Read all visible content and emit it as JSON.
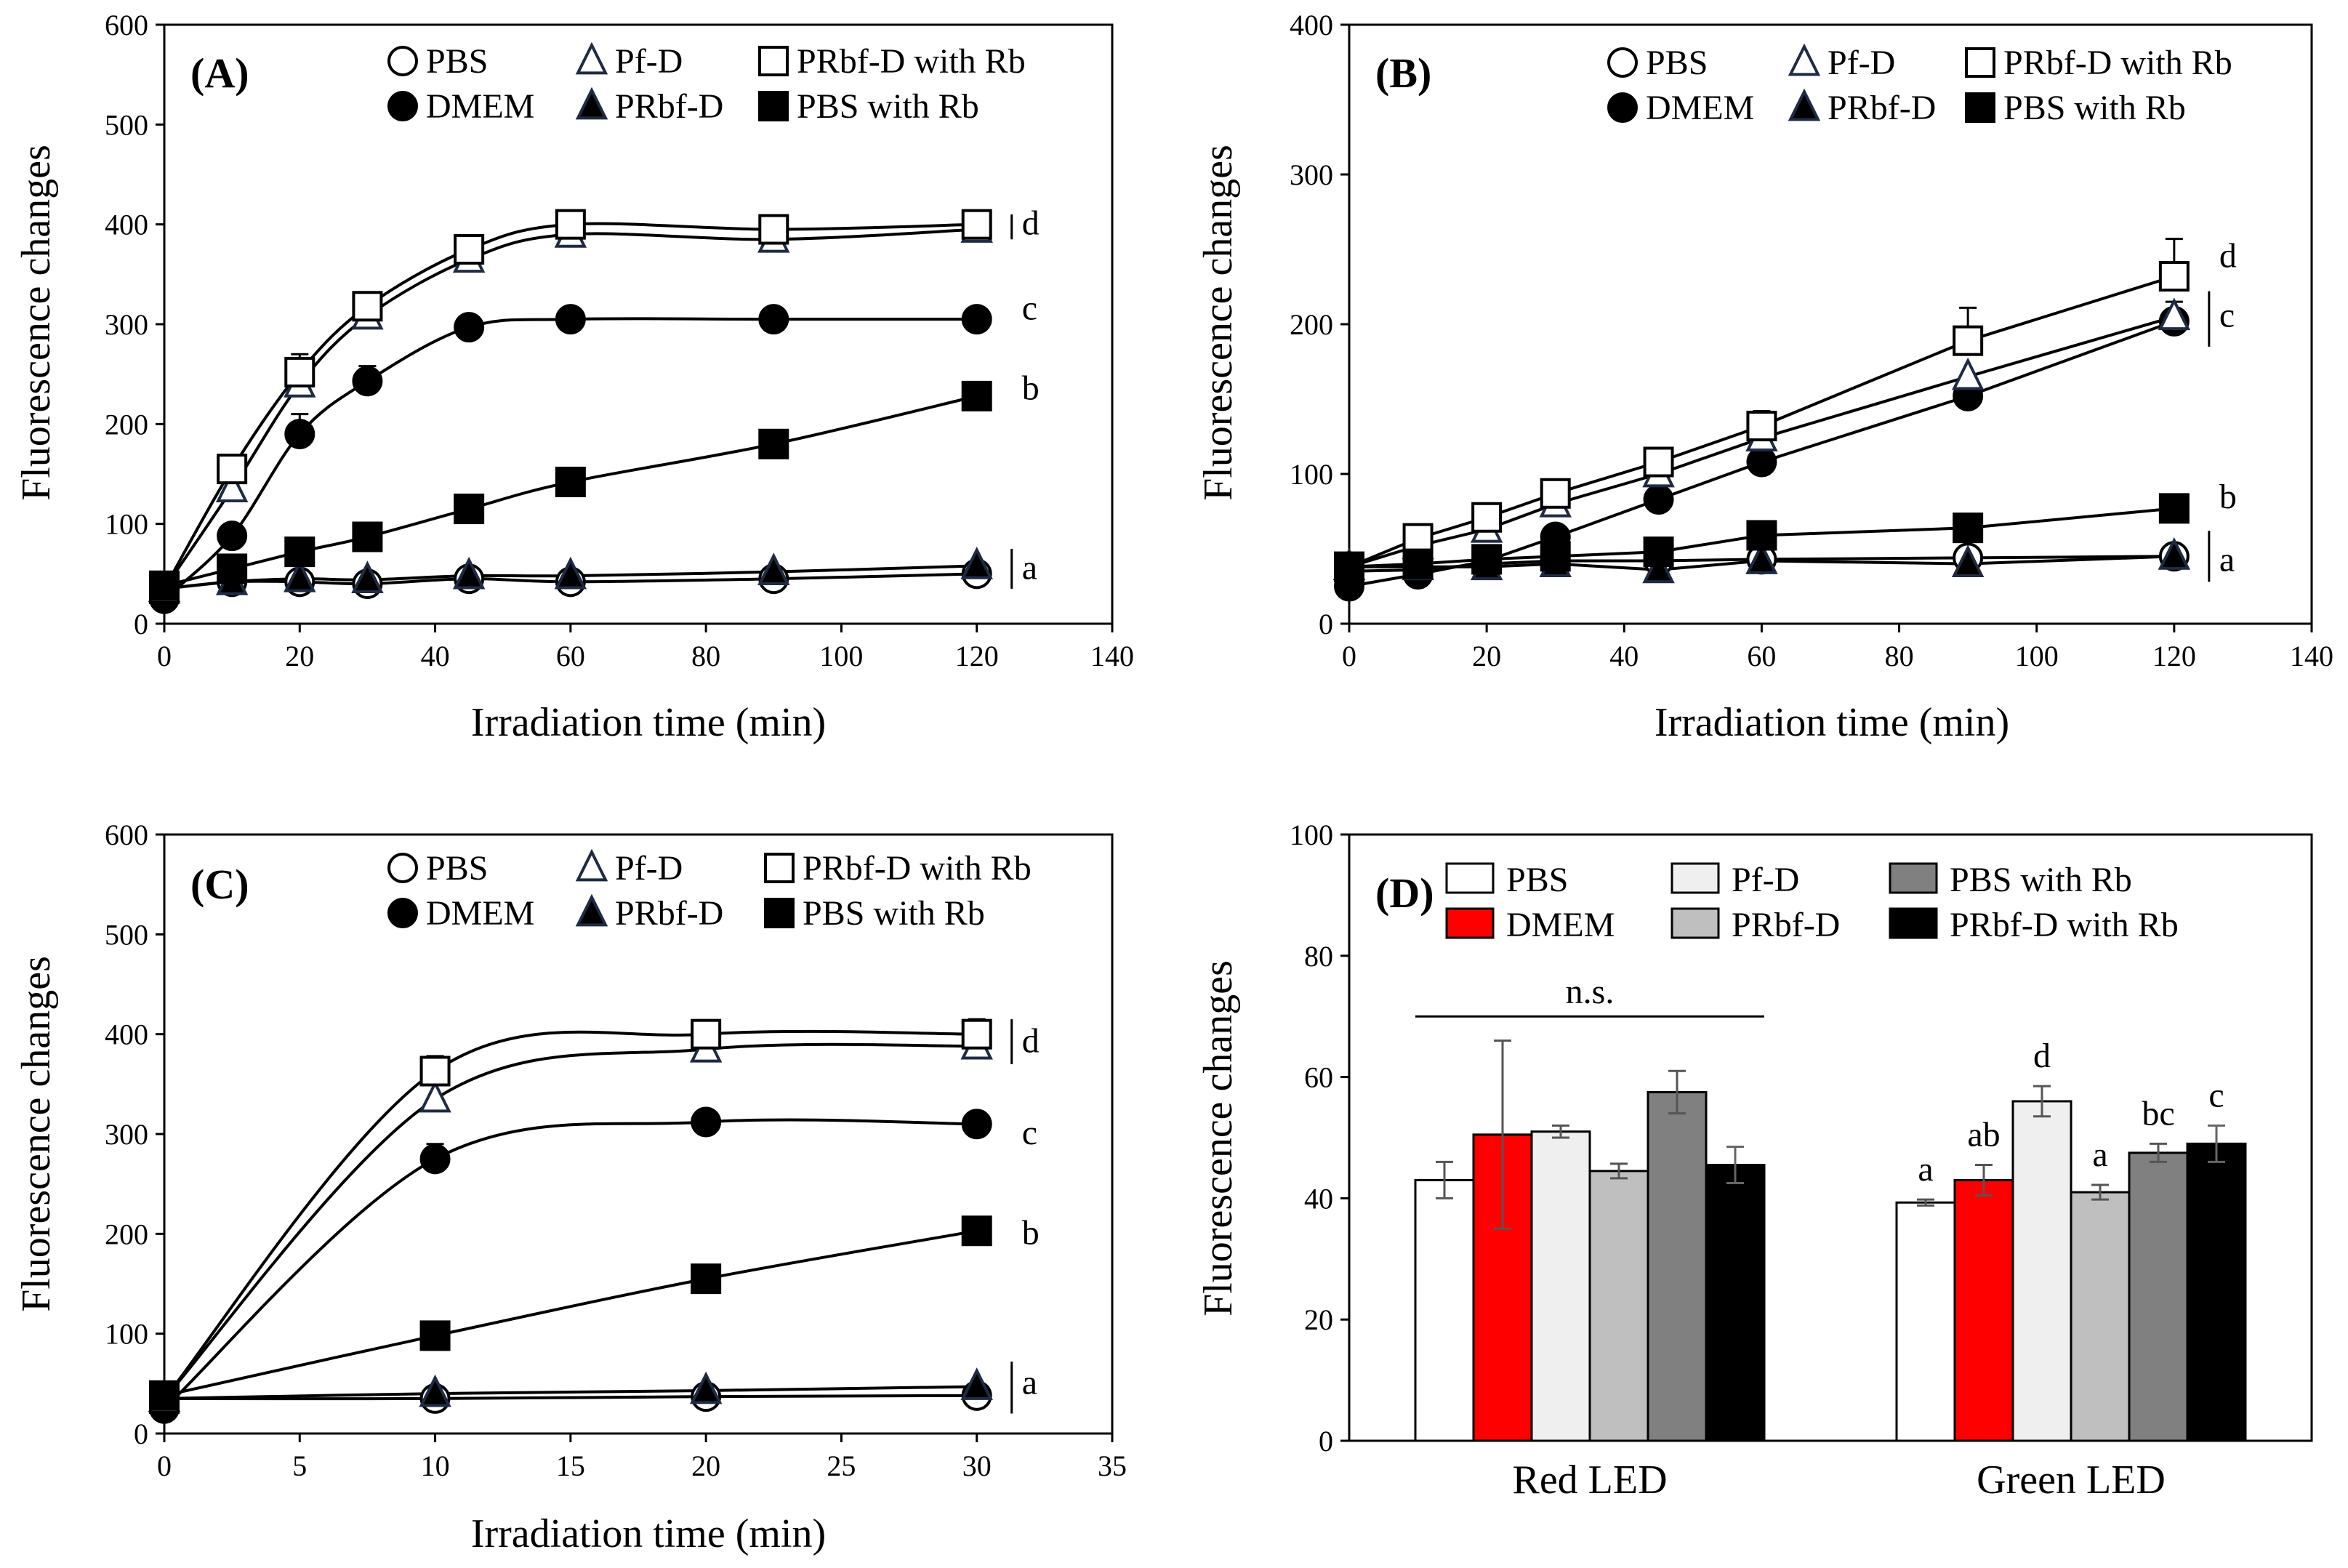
{
  "chart_data": [
    {
      "id": "A",
      "type": "line",
      "panel_label": "(A)",
      "xlabel": "Irradiation time (min)",
      "ylabel": "Fluorescence changes",
      "xlim": [
        0,
        140
      ],
      "ylim": [
        0,
        600
      ],
      "xticks": [
        0,
        20,
        40,
        60,
        80,
        100,
        120,
        140
      ],
      "yticks": [
        0,
        100,
        200,
        300,
        400,
        500,
        600
      ],
      "x": [
        0,
        10,
        20,
        30,
        45,
        60,
        90,
        120
      ],
      "smooth": true,
      "series": [
        {
          "name": "PBS",
          "marker": "circle-open",
          "values": [
            35,
            42,
            42,
            40,
            45,
            42,
            45,
            50
          ],
          "err": [
            0,
            0,
            0,
            0,
            0,
            0,
            0,
            0
          ]
        },
        {
          "name": "DMEM",
          "marker": "circle-filled",
          "values": [
            25,
            88,
            190,
            243,
            297,
            305,
            305,
            305
          ],
          "err": [
            0,
            0,
            20,
            15,
            0,
            0,
            0,
            0
          ]
        },
        {
          "name": "Pf-D",
          "marker": "triangle-open",
          "values": [
            35,
            135,
            240,
            308,
            365,
            390,
            385,
            395
          ],
          "err": [
            0,
            0,
            10,
            12,
            15,
            0,
            0,
            0
          ]
        },
        {
          "name": "PRbf-D",
          "marker": "triangle-filled",
          "values": [
            35,
            42,
            45,
            44,
            48,
            48,
            52,
            58
          ],
          "err": [
            0,
            0,
            0,
            0,
            0,
            0,
            0,
            0
          ]
        },
        {
          "name": "PRbf-D with Rb",
          "marker": "square-open",
          "values": [
            35,
            155,
            252,
            318,
            375,
            400,
            395,
            400
          ],
          "err": [
            0,
            0,
            18,
            0,
            0,
            0,
            0,
            0
          ]
        },
        {
          "name": "PBS with Rb",
          "marker": "square-filled",
          "values": [
            38,
            55,
            72,
            87,
            115,
            142,
            180,
            228
          ],
          "err": [
            0,
            0,
            0,
            0,
            0,
            0,
            0,
            0
          ]
        }
      ],
      "legend_order": [
        "PBS",
        "Pf-D",
        "PRbf-D with Rb",
        "DMEM",
        "PRbf-D",
        "PBS with Rb"
      ],
      "significance": [
        {
          "label": "d",
          "y": 400,
          "bracket": [
            385,
            410
          ]
        },
        {
          "label": "c",
          "y": 315,
          "bracket": null
        },
        {
          "label": "b",
          "y": 235,
          "bracket": null
        },
        {
          "label": "a",
          "y": 55,
          "bracket": [
            35,
            75
          ]
        }
      ]
    },
    {
      "id": "B",
      "type": "line",
      "panel_label": "(B)",
      "xlabel": "Irradiation time (min)",
      "ylabel": "Fluorescence changes",
      "xlim": [
        0,
        140
      ],
      "ylim": [
        0,
        400
      ],
      "xticks": [
        0,
        20,
        40,
        60,
        80,
        100,
        120,
        140
      ],
      "yticks": [
        0,
        100,
        200,
        300,
        400
      ],
      "x": [
        0,
        10,
        20,
        30,
        45,
        60,
        90,
        120
      ],
      "smooth": false,
      "series": [
        {
          "name": "PBS",
          "marker": "circle-open",
          "values": [
            35,
            36,
            40,
            42,
            42,
            43,
            44,
            45
          ],
          "err": [
            0,
            0,
            0,
            0,
            0,
            0,
            0,
            0
          ]
        },
        {
          "name": "DMEM",
          "marker": "circle-filled",
          "values": [
            25,
            33,
            42,
            58,
            83,
            108,
            152,
            202
          ],
          "err": [
            0,
            0,
            0,
            0,
            0,
            0,
            0,
            0
          ]
        },
        {
          "name": "Pf-D",
          "marker": "triangle-open",
          "values": [
            38,
            52,
            63,
            80,
            100,
            124,
            165,
            205
          ],
          "err": [
            0,
            0,
            0,
            0,
            0,
            0,
            0,
            10
          ]
        },
        {
          "name": "PRbf-D",
          "marker": "triangle-filled",
          "values": [
            38,
            38,
            38,
            40,
            36,
            42,
            40,
            45
          ],
          "err": [
            0,
            0,
            0,
            0,
            0,
            0,
            0,
            0
          ]
        },
        {
          "name": "PRbf-D with Rb",
          "marker": "square-open",
          "values": [
            38,
            57,
            71,
            87,
            108,
            132,
            189,
            232
          ],
          "err": [
            0,
            0,
            0,
            0,
            0,
            10,
            22,
            25
          ]
        },
        {
          "name": "PBS with Rb",
          "marker": "square-filled",
          "values": [
            38,
            40,
            43,
            45,
            48,
            59,
            64,
            77
          ],
          "err": [
            0,
            0,
            0,
            0,
            0,
            0,
            0,
            0
          ]
        }
      ],
      "legend_order": [
        "PBS",
        "Pf-D",
        "PRbf-D with Rb",
        "DMEM",
        "PRbf-D",
        "PBS with Rb"
      ],
      "significance": [
        {
          "label": "d",
          "y": 245,
          "bracket": null
        },
        {
          "label": "c",
          "y": 205,
          "bracket": [
            185,
            222
          ]
        },
        {
          "label": "b",
          "y": 84,
          "bracket": null
        },
        {
          "label": "a",
          "y": 42,
          "bracket": [
            28,
            62
          ]
        }
      ]
    },
    {
      "id": "C",
      "type": "line",
      "panel_label": "(C)",
      "xlabel": "Irradiation time (min)",
      "ylabel": "Fluorescence changes",
      "xlim": [
        0,
        35
      ],
      "ylim": [
        0,
        600
      ],
      "xticks": [
        0,
        5,
        10,
        15,
        20,
        25,
        30,
        35
      ],
      "yticks": [
        0,
        100,
        200,
        300,
        400,
        500,
        600
      ],
      "x": [
        0,
        10,
        20,
        30
      ],
      "smooth": true,
      "series": [
        {
          "name": "PBS",
          "marker": "circle-open",
          "values": [
            35,
            35,
            37,
            38
          ],
          "err": [
            0,
            0,
            0,
            0
          ]
        },
        {
          "name": "DMEM",
          "marker": "circle-filled",
          "values": [
            25,
            275,
            312,
            310
          ],
          "err": [
            0,
            15,
            0,
            0
          ]
        },
        {
          "name": "Pf-D",
          "marker": "triangle-open",
          "values": [
            35,
            335,
            385,
            388
          ],
          "err": [
            0,
            18,
            10,
            8
          ]
        },
        {
          "name": "PRbf-D",
          "marker": "triangle-filled",
          "values": [
            35,
            40,
            43,
            47
          ],
          "err": [
            0,
            0,
            0,
            0
          ]
        },
        {
          "name": "PRbf-D with Rb",
          "marker": "square-open",
          "values": [
            35,
            363,
            400,
            400
          ],
          "err": [
            0,
            15,
            8,
            15
          ]
        },
        {
          "name": "PBS with Rb",
          "marker": "square-filled",
          "values": [
            38,
            98,
            155,
            203
          ],
          "err": [
            0,
            0,
            0,
            0
          ]
        }
      ],
      "legend_order": [
        "PBS",
        "Pf-D",
        "PRbf-D with Rb",
        "DMEM",
        "PRbf-D",
        "PBS with Rb"
      ],
      "significance": [
        {
          "label": "d",
          "y": 392,
          "bracket": [
            370,
            415
          ]
        },
        {
          "label": "c",
          "y": 300,
          "bracket": null
        },
        {
          "label": "b",
          "y": 200,
          "bracket": null
        },
        {
          "label": "a",
          "y": 50,
          "bracket": [
            20,
            72
          ]
        }
      ]
    },
    {
      "id": "D",
      "type": "bar",
      "panel_label": "(D)",
      "xlabel": "",
      "ylabel": "Fluorescence changes",
      "ylim": [
        0,
        100
      ],
      "yticks": [
        0,
        20,
        40,
        60,
        80,
        100
      ],
      "categories": [
        "Red LED",
        "Green LED"
      ],
      "series": [
        {
          "name": "PBS",
          "color": "#ffffff",
          "values": [
            43,
            39.3
          ],
          "err": [
            3,
            0.5
          ]
        },
        {
          "name": "DMEM",
          "color": "#ff0000",
          "values": [
            50.5,
            43
          ],
          "err": [
            15.5,
            2.5
          ]
        },
        {
          "name": "Pf-D",
          "color": "#efefef",
          "values": [
            51,
            56
          ],
          "err": [
            1,
            2.5
          ]
        },
        {
          "name": "PRbf-D",
          "color": "#bfbfbf",
          "values": [
            44.5,
            41
          ],
          "err": [
            1.2,
            1.2
          ]
        },
        {
          "name": "PBS with Rb",
          "color": "#808080",
          "values": [
            57.5,
            47.5
          ],
          "err": [
            3.5,
            1.5
          ]
        },
        {
          "name": "PRbf-D with Rb",
          "color": "#000000",
          "values": [
            45.5,
            49
          ],
          "err": [
            3,
            3
          ]
        }
      ],
      "legend_order": [
        "PBS",
        "Pf-D",
        "PBS with Rb",
        "DMEM",
        "PRbf-D",
        "PRbf-D with Rb"
      ],
      "group_annotation": {
        "category": "Red LED",
        "label": "n.s.",
        "y": 70
      },
      "bar_labels": {
        "Green LED": [
          "a",
          "ab",
          "d",
          "a",
          "bc",
          "c"
        ]
      }
    }
  ]
}
